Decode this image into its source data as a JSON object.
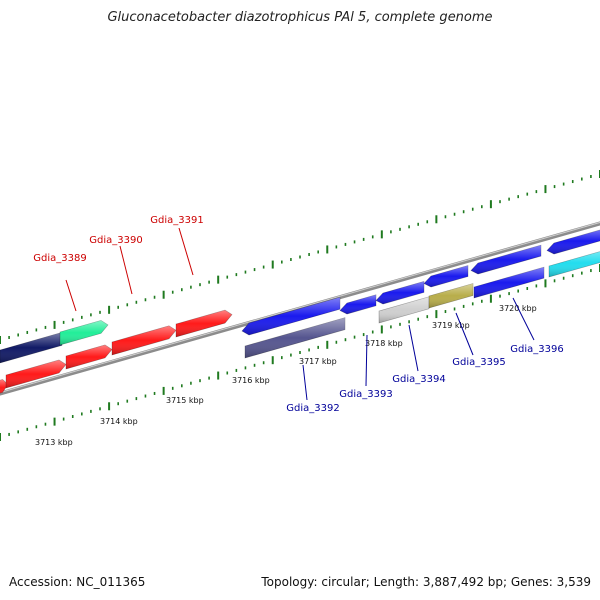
{
  "title": "Gluconacetobacter diazotrophicus PAl 5, complete genome",
  "footer": {
    "accession": "Accession: NC_011365",
    "summary": "Topology: circular; Length: 3,887,492 bp; Genes: 3,539"
  },
  "colors": {
    "backbone": "#8c8c8c",
    "ticks": "#1f7a1f",
    "label_forward": "#cc0000",
    "label_reverse": "#000099"
  },
  "scale_labels": [
    "3713 kbp",
    "3714 kbp",
    "3715 kbp",
    "3716 kbp",
    "3717 kbp",
    "3718 kbp",
    "3719 kbp",
    "3720 kbp"
  ],
  "gene_labels": [
    {
      "name": "Gdia_3389",
      "strand": "forward"
    },
    {
      "name": "Gdia_3390",
      "strand": "forward"
    },
    {
      "name": "Gdia_3391",
      "strand": "forward"
    },
    {
      "name": "Gdia_3392",
      "strand": "reverse"
    },
    {
      "name": "Gdia_3393",
      "strand": "reverse"
    },
    {
      "name": "Gdia_3394",
      "strand": "reverse"
    },
    {
      "name": "Gdia_3395",
      "strand": "reverse"
    },
    {
      "name": "Gdia_3396",
      "strand": "reverse"
    }
  ],
  "genes": [
    {
      "color": "#ff1a1a",
      "direction": "right"
    },
    {
      "color": "#ff1a1a",
      "direction": "right"
    },
    {
      "color": "#ff1a1a",
      "direction": "right"
    },
    {
      "color": "#ff1a1a",
      "direction": "right"
    },
    {
      "color": "#ff1a1a",
      "direction": "right"
    },
    {
      "color": "#111a66",
      "direction": "none"
    },
    {
      "color": "#22ee99",
      "direction": "right"
    },
    {
      "color": "#1a1aee",
      "direction": "left"
    },
    {
      "color": "#55558f",
      "direction": "none"
    },
    {
      "color": "#1a1aee",
      "direction": "left"
    },
    {
      "color": "#1a1aee",
      "direction": "left"
    },
    {
      "color": "#cfcfcf",
      "direction": "none"
    },
    {
      "color": "#b8ad4a",
      "direction": "none"
    },
    {
      "color": "#1a1aee",
      "direction": "left"
    },
    {
      "color": "#1a1aee",
      "direction": "left"
    },
    {
      "color": "#1a1aee",
      "direction": "none"
    },
    {
      "color": "#1a1aee",
      "direction": "left"
    },
    {
      "color": "#22ddee",
      "direction": "none"
    }
  ]
}
